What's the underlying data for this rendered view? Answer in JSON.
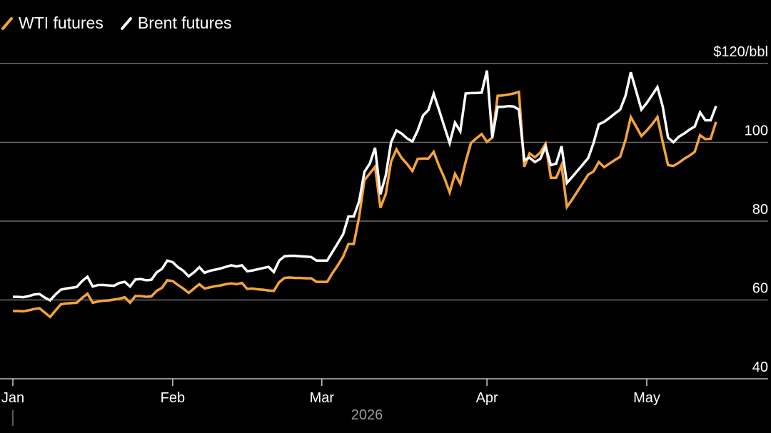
{
  "legend": {
    "wti_label": "WTI futures",
    "brent_label": "Brent futures"
  },
  "colors": {
    "wti": "#F5A33C",
    "brent": "#FFFFFF",
    "grid": "#6e6e6e",
    "background": "#000000"
  },
  "chart_data": {
    "type": "line",
    "ylim": [
      40,
      120
    ],
    "yticks": [
      40,
      60,
      80,
      100,
      120
    ],
    "ytick_labels": [
      "40",
      "60",
      "80",
      "100",
      "$120/bbl"
    ],
    "xticks": [
      {
        "date": "2026-01-02",
        "label": "Jan"
      },
      {
        "date": "2026-02-01",
        "label": "Feb"
      },
      {
        "date": "2026-03-01",
        "label": "Mar"
      },
      {
        "date": "2026-04-01",
        "label": "Apr"
      },
      {
        "date": "2026-05-01",
        "label": "May"
      }
    ],
    "xlim": [
      "2026-01-01",
      "2026-06-15"
    ],
    "year_label": "2026",
    "series": [
      {
        "name": "WTI futures",
        "color": "#F5A33C",
        "points": [
          [
            "2026-01-02",
            57.2
          ],
          [
            "2026-01-03",
            57.2
          ],
          [
            "2026-01-04",
            57.1
          ],
          [
            "2026-01-05",
            57.4
          ],
          [
            "2026-01-06",
            57.7
          ],
          [
            "2026-01-07",
            57.9
          ],
          [
            "2026-01-08",
            56.8
          ],
          [
            "2026-01-09",
            55.7
          ],
          [
            "2026-01-10",
            57.3
          ],
          [
            "2026-01-11",
            58.9
          ],
          [
            "2026-01-12",
            59.1
          ],
          [
            "2026-01-13",
            59.2
          ],
          [
            "2026-01-14",
            59.3
          ],
          [
            "2026-01-15",
            60.5
          ],
          [
            "2026-01-16",
            61.6
          ],
          [
            "2026-01-17",
            59.3
          ],
          [
            "2026-01-18",
            59.6
          ],
          [
            "2026-01-19",
            59.8
          ],
          [
            "2026-01-20",
            59.9
          ],
          [
            "2026-01-21",
            60.1
          ],
          [
            "2026-01-22",
            60.3
          ],
          [
            "2026-01-23",
            60.7
          ],
          [
            "2026-01-24",
            59.3
          ],
          [
            "2026-01-25",
            61.0
          ],
          [
            "2026-01-26",
            61.0
          ],
          [
            "2026-01-27",
            60.8
          ],
          [
            "2026-01-28",
            60.9
          ],
          [
            "2026-01-29",
            62.3
          ],
          [
            "2026-01-30",
            63.1
          ],
          [
            "2026-01-31",
            65.0
          ],
          [
            "2026-02-01",
            64.8
          ],
          [
            "2026-02-02",
            63.8
          ],
          [
            "2026-02-03",
            62.9
          ],
          [
            "2026-02-04",
            61.8
          ],
          [
            "2026-02-05",
            62.9
          ],
          [
            "2026-02-06",
            64.0
          ],
          [
            "2026-02-07",
            62.9
          ],
          [
            "2026-02-08",
            63.2
          ],
          [
            "2026-02-09",
            63.5
          ],
          [
            "2026-02-10",
            63.7
          ],
          [
            "2026-02-11",
            64.0
          ],
          [
            "2026-02-12",
            64.2
          ],
          [
            "2026-02-13",
            64.0
          ],
          [
            "2026-02-14",
            64.3
          ],
          [
            "2026-02-15",
            62.8
          ],
          [
            "2026-02-16",
            62.9
          ],
          [
            "2026-02-17",
            62.7
          ],
          [
            "2026-02-18",
            62.6
          ],
          [
            "2026-02-19",
            62.4
          ],
          [
            "2026-02-20",
            62.3
          ],
          [
            "2026-02-21",
            64.5
          ],
          [
            "2026-02-22",
            65.6
          ],
          [
            "2026-02-23",
            65.7
          ],
          [
            "2026-02-24",
            65.6
          ],
          [
            "2026-02-25",
            65.6
          ],
          [
            "2026-02-26",
            65.5
          ],
          [
            "2026-02-27",
            65.5
          ],
          [
            "2026-02-28",
            64.6
          ],
          [
            "2026-03-01",
            64.6
          ],
          [
            "2026-03-02",
            64.6
          ],
          [
            "2026-03-03",
            66.8
          ],
          [
            "2026-03-04",
            68.8
          ],
          [
            "2026-03-05",
            71.0
          ],
          [
            "2026-03-06",
            74.2
          ],
          [
            "2026-03-07",
            74.2
          ],
          [
            "2026-03-08",
            81.0
          ],
          [
            "2026-03-09",
            90.4
          ],
          [
            "2026-03-10",
            92.1
          ],
          [
            "2026-03-11",
            93.8
          ],
          [
            "2026-03-12",
            83.4
          ],
          [
            "2026-03-13",
            86.9
          ],
          [
            "2026-03-14",
            95.1
          ],
          [
            "2026-03-15",
            98.2
          ],
          [
            "2026-03-16",
            96.0
          ],
          [
            "2026-03-17",
            94.5
          ],
          [
            "2026-03-18",
            92.7
          ],
          [
            "2026-03-19",
            95.8
          ],
          [
            "2026-03-20",
            95.9
          ],
          [
            "2026-03-21",
            95.9
          ],
          [
            "2026-03-22",
            97.6
          ],
          [
            "2026-03-23",
            94.0
          ],
          [
            "2026-03-24",
            91.0
          ],
          [
            "2026-03-25",
            87.3
          ],
          [
            "2026-03-26",
            92.0
          ],
          [
            "2026-03-27",
            89.5
          ],
          [
            "2026-03-28",
            95.1
          ],
          [
            "2026-03-29",
            99.8
          ],
          [
            "2026-03-30",
            101.0
          ],
          [
            "2026-03-31",
            102.1
          ],
          [
            "2026-04-01",
            100.1
          ],
          [
            "2026-04-02",
            101.2
          ],
          [
            "2026-04-03",
            111.8
          ],
          [
            "2026-04-04",
            111.9
          ],
          [
            "2026-04-05",
            112.1
          ],
          [
            "2026-04-06",
            112.4
          ],
          [
            "2026-04-07",
            112.8
          ],
          [
            "2026-04-08",
            93.8
          ],
          [
            "2026-04-09",
            97.2
          ],
          [
            "2026-04-10",
            96.2
          ],
          [
            "2026-04-11",
            97.4
          ],
          [
            "2026-04-12",
            99.6
          ],
          [
            "2026-04-13",
            91.0
          ],
          [
            "2026-04-14",
            91.0
          ],
          [
            "2026-04-15",
            94.2
          ],
          [
            "2026-04-16",
            83.6
          ],
          [
            "2026-04-17",
            85.5
          ],
          [
            "2026-04-18",
            87.6
          ],
          [
            "2026-04-19",
            89.7
          ],
          [
            "2026-04-20",
            91.8
          ],
          [
            "2026-04-21",
            92.6
          ],
          [
            "2026-04-22",
            95.0
          ],
          [
            "2026-04-23",
            93.7
          ],
          [
            "2026-04-24",
            94.6
          ],
          [
            "2026-04-25",
            95.5
          ],
          [
            "2026-04-26",
            96.3
          ],
          [
            "2026-04-27",
            100.6
          ],
          [
            "2026-04-28",
            106.4
          ],
          [
            "2026-04-29",
            104.0
          ],
          [
            "2026-04-30",
            101.6
          ],
          [
            "2026-05-01",
            103.0
          ],
          [
            "2026-05-02",
            104.6
          ],
          [
            "2026-05-03",
            106.4
          ],
          [
            "2026-05-04",
            100.0
          ],
          [
            "2026-05-05",
            94.2
          ],
          [
            "2026-05-06",
            94.0
          ],
          [
            "2026-05-07",
            94.8
          ],
          [
            "2026-05-08",
            95.8
          ],
          [
            "2026-05-09",
            96.6
          ],
          [
            "2026-05-10",
            97.6
          ],
          [
            "2026-05-11",
            101.8
          ],
          [
            "2026-05-12",
            100.8
          ],
          [
            "2026-05-13",
            100.9
          ],
          [
            "2026-05-14",
            105.2
          ]
        ]
      },
      {
        "name": "Brent futures",
        "color": "#FFFFFF",
        "points": [
          [
            "2026-01-02",
            60.8
          ],
          [
            "2026-01-03",
            60.8
          ],
          [
            "2026-01-04",
            60.7
          ],
          [
            "2026-01-05",
            61.0
          ],
          [
            "2026-01-06",
            61.4
          ],
          [
            "2026-01-07",
            61.5
          ],
          [
            "2026-01-08",
            60.6
          ],
          [
            "2026-01-09",
            59.9
          ],
          [
            "2026-01-10",
            61.4
          ],
          [
            "2026-01-11",
            62.6
          ],
          [
            "2026-01-12",
            62.9
          ],
          [
            "2026-01-13",
            63.1
          ],
          [
            "2026-01-14",
            63.3
          ],
          [
            "2026-01-15",
            64.8
          ],
          [
            "2026-01-16",
            65.9
          ],
          [
            "2026-01-17",
            63.4
          ],
          [
            "2026-01-18",
            63.8
          ],
          [
            "2026-01-19",
            63.8
          ],
          [
            "2026-01-20",
            63.7
          ],
          [
            "2026-01-21",
            63.6
          ],
          [
            "2026-01-22",
            64.3
          ],
          [
            "2026-01-23",
            64.6
          ],
          [
            "2026-01-24",
            63.4
          ],
          [
            "2026-01-25",
            65.2
          ],
          [
            "2026-01-26",
            65.3
          ],
          [
            "2026-01-27",
            65.0
          ],
          [
            "2026-01-28",
            65.1
          ],
          [
            "2026-01-29",
            67.0
          ],
          [
            "2026-01-30",
            67.9
          ],
          [
            "2026-01-31",
            70.0
          ],
          [
            "2026-02-01",
            69.6
          ],
          [
            "2026-02-02",
            68.3
          ],
          [
            "2026-02-03",
            67.4
          ],
          [
            "2026-02-04",
            66.0
          ],
          [
            "2026-02-05",
            67.0
          ],
          [
            "2026-02-06",
            68.3
          ],
          [
            "2026-02-07",
            66.9
          ],
          [
            "2026-02-08",
            67.4
          ],
          [
            "2026-02-09",
            67.7
          ],
          [
            "2026-02-10",
            68.0
          ],
          [
            "2026-02-11",
            68.4
          ],
          [
            "2026-02-12",
            68.8
          ],
          [
            "2026-02-13",
            68.5
          ],
          [
            "2026-02-14",
            68.8
          ],
          [
            "2026-02-15",
            67.3
          ],
          [
            "2026-02-16",
            67.5
          ],
          [
            "2026-02-17",
            67.8
          ],
          [
            "2026-02-18",
            68.1
          ],
          [
            "2026-02-19",
            68.4
          ],
          [
            "2026-02-20",
            67.1
          ],
          [
            "2026-02-21",
            70.0
          ],
          [
            "2026-02-22",
            71.1
          ],
          [
            "2026-02-23",
            71.2
          ],
          [
            "2026-02-24",
            71.2
          ],
          [
            "2026-02-25",
            71.1
          ],
          [
            "2026-02-26",
            71.0
          ],
          [
            "2026-02-27",
            70.9
          ],
          [
            "2026-02-28",
            70.0
          ],
          [
            "2026-03-01",
            70.0
          ],
          [
            "2026-03-02",
            70.0
          ],
          [
            "2026-03-03",
            72.2
          ],
          [
            "2026-03-04",
            74.4
          ],
          [
            "2026-03-05",
            76.7
          ],
          [
            "2026-03-06",
            81.2
          ],
          [
            "2026-03-07",
            81.2
          ],
          [
            "2026-03-08",
            85.0
          ],
          [
            "2026-03-09",
            92.5
          ],
          [
            "2026-03-10",
            94.6
          ],
          [
            "2026-03-11",
            98.6
          ],
          [
            "2026-03-12",
            86.8
          ],
          [
            "2026-03-13",
            91.6
          ],
          [
            "2026-03-14",
            100.0
          ],
          [
            "2026-03-15",
            103.0
          ],
          [
            "2026-03-16",
            102.2
          ],
          [
            "2026-03-17",
            101.0
          ],
          [
            "2026-03-18",
            100.2
          ],
          [
            "2026-03-19",
            103.0
          ],
          [
            "2026-03-20",
            106.8
          ],
          [
            "2026-03-21",
            108.2
          ],
          [
            "2026-03-22",
            112.3
          ],
          [
            "2026-03-23",
            108.2
          ],
          [
            "2026-03-24",
            104.0
          ],
          [
            "2026-03-25",
            99.8
          ],
          [
            "2026-03-26",
            105.0
          ],
          [
            "2026-03-27",
            102.8
          ],
          [
            "2026-03-28",
            112.4
          ],
          [
            "2026-03-29",
            112.5
          ],
          [
            "2026-03-30",
            112.5
          ],
          [
            "2026-03-31",
            112.6
          ],
          [
            "2026-04-01",
            118.2
          ],
          [
            "2026-04-02",
            101.2
          ],
          [
            "2026-04-03",
            109.0
          ],
          [
            "2026-04-04",
            109.0
          ],
          [
            "2026-04-05",
            109.2
          ],
          [
            "2026-04-06",
            109.1
          ],
          [
            "2026-04-07",
            108.3
          ],
          [
            "2026-04-08",
            95.5
          ],
          [
            "2026-04-09",
            96.1
          ],
          [
            "2026-04-10",
            95.0
          ],
          [
            "2026-04-11",
            95.8
          ],
          [
            "2026-04-12",
            98.9
          ],
          [
            "2026-04-13",
            94.2
          ],
          [
            "2026-04-14",
            94.6
          ],
          [
            "2026-04-15",
            99.0
          ],
          [
            "2026-04-16",
            89.7
          ],
          [
            "2026-04-17",
            91.2
          ],
          [
            "2026-04-18",
            92.8
          ],
          [
            "2026-04-19",
            94.4
          ],
          [
            "2026-04-20",
            96.0
          ],
          [
            "2026-04-21",
            99.8
          ],
          [
            "2026-04-22",
            104.6
          ],
          [
            "2026-04-23",
            105.2
          ],
          [
            "2026-04-24",
            106.2
          ],
          [
            "2026-04-25",
            107.3
          ],
          [
            "2026-04-26",
            108.3
          ],
          [
            "2026-04-27",
            111.8
          ],
          [
            "2026-04-28",
            117.8
          ],
          [
            "2026-04-29",
            113.0
          ],
          [
            "2026-04-30",
            108.3
          ],
          [
            "2026-05-01",
            110.0
          ],
          [
            "2026-05-02",
            112.0
          ],
          [
            "2026-05-03",
            114.0
          ],
          [
            "2026-05-04",
            109.0
          ],
          [
            "2026-05-05",
            101.2
          ],
          [
            "2026-05-06",
            100.0
          ],
          [
            "2026-05-07",
            101.4
          ],
          [
            "2026-05-08",
            102.2
          ],
          [
            "2026-05-09",
            103.2
          ],
          [
            "2026-05-10",
            104.0
          ],
          [
            "2026-05-11",
            107.6
          ],
          [
            "2026-05-12",
            105.6
          ],
          [
            "2026-05-13",
            105.6
          ],
          [
            "2026-05-14",
            109.2
          ]
        ]
      }
    ]
  }
}
